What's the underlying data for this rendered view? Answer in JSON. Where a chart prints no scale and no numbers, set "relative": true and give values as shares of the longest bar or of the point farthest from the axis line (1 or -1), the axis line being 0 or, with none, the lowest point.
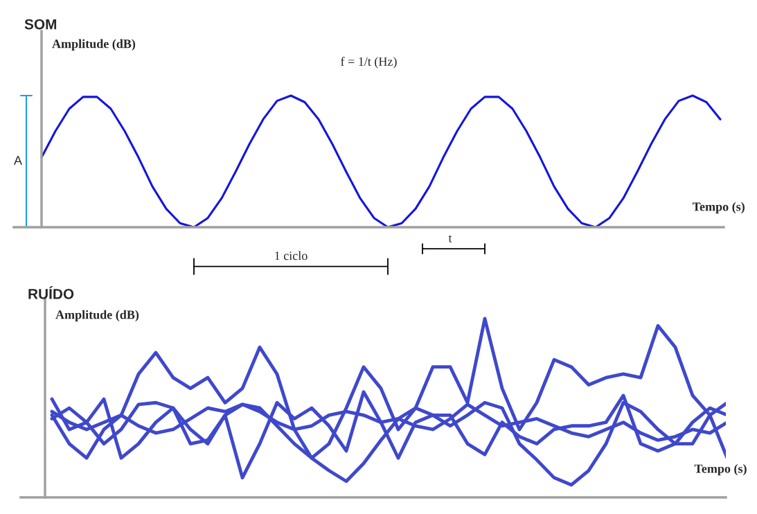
{
  "chart_data": [
    {
      "type": "line",
      "title": "SOM",
      "xlabel": "Tempo (s)",
      "ylabel": "Amplitude (dB)",
      "relative": true,
      "categories": [
        null,
        null,
        null,
        null,
        null,
        null,
        null,
        null,
        null,
        null,
        null,
        null,
        null,
        null,
        null,
        null,
        null,
        null,
        null,
        null,
        null,
        null,
        null,
        null,
        null,
        null,
        null,
        null,
        null,
        null,
        null,
        null,
        null,
        null,
        null,
        null,
        null,
        null,
        null,
        null,
        null,
        null,
        null,
        null,
        null,
        null,
        null,
        null,
        null,
        null
      ],
      "series": [
        {
          "color": "#1414e0",
          "values": [
            0.53,
            0.73,
            0.9,
            0.99,
            0.99,
            0.9,
            0.73,
            0.53,
            0.31,
            0.14,
            0.03,
            0.0,
            0.07,
            0.22,
            0.42,
            0.63,
            0.82,
            0.96,
            1.0,
            0.95,
            0.82,
            0.63,
            0.42,
            0.22,
            0.07,
            0.0,
            0.03,
            0.14,
            0.31,
            0.53,
            0.73,
            0.9,
            0.99,
            0.99,
            0.9,
            0.73,
            0.53,
            0.31,
            0.14,
            0.03,
            0.0,
            0.07,
            0.22,
            0.42,
            0.63,
            0.82,
            0.96,
            1.0,
            0.95,
            0.82
          ]
        }
      ],
      "annotations": [
        "f = 1/t (Hz)",
        "1 ciclo",
        "t",
        "A"
      ]
    },
    {
      "type": "line",
      "title": "RUÍDO",
      "xlabel": "Tempo (s)",
      "ylabel": "Amplitude (dB)",
      "relative": true,
      "categories": [
        null,
        null,
        null,
        null,
        null,
        null,
        null,
        null,
        null,
        null,
        null,
        null,
        null,
        null,
        null,
        null,
        null,
        null,
        null,
        null,
        null,
        null,
        null,
        null,
        null,
        null,
        null,
        null,
        null,
        null,
        null,
        null,
        null,
        null,
        null,
        null,
        null,
        null,
        null,
        null
      ],
      "series": [
        {
          "color": "#3f48cc",
          "values": [
            0.46,
            0.3,
            0.22,
            0.38,
            0.46,
            0.69,
            0.81,
            0.67,
            0.61,
            0.67,
            0.53,
            0.61,
            0.84,
            0.69,
            0.38,
            0.22,
            0.3,
            0.5,
            0.73,
            0.61,
            0.38,
            0.5,
            0.73,
            0.73,
            0.53,
            1.0,
            0.61,
            0.38,
            0.53,
            0.77,
            0.73,
            0.63,
            0.67,
            0.69,
            0.67,
            0.96,
            0.84,
            0.57,
            0.46,
            0.53
          ]
        },
        {
          "color": "#3f48cc",
          "values": [
            0.44,
            0.5,
            0.42,
            0.3,
            0.38,
            0.52,
            0.53,
            0.5,
            0.38,
            0.3,
            0.46,
            0.52,
            0.5,
            0.4,
            0.3,
            0.22,
            0.15,
            0.09,
            0.19,
            0.32,
            0.44,
            0.5,
            0.46,
            0.4,
            0.46,
            0.53,
            0.5,
            0.3,
            0.21,
            0.11,
            0.07,
            0.15,
            0.3,
            0.53,
            0.48,
            0.38,
            0.3,
            0.42,
            0.5,
            0.46
          ]
        },
        {
          "color": "#3f48cc",
          "values": [
            0.48,
            0.42,
            0.38,
            0.42,
            0.46,
            0.4,
            0.36,
            0.38,
            0.44,
            0.5,
            0.48,
            0.52,
            0.48,
            0.42,
            0.38,
            0.4,
            0.46,
            0.48,
            0.46,
            0.42,
            0.44,
            0.4,
            0.38,
            0.44,
            0.52,
            0.46,
            0.4,
            0.42,
            0.44,
            0.4,
            0.36,
            0.34,
            0.38,
            0.42,
            0.36,
            0.32,
            0.34,
            0.38,
            0.36,
            0.42
          ]
        },
        {
          "color": "#3f48cc",
          "values": [
            0.55,
            0.38,
            0.42,
            0.55,
            0.22,
            0.3,
            0.42,
            0.5,
            0.3,
            0.32,
            0.46,
            0.11,
            0.3,
            0.53,
            0.44,
            0.5,
            0.4,
            0.26,
            0.59,
            0.42,
            0.22,
            0.42,
            0.46,
            0.46,
            0.3,
            0.24,
            0.42,
            0.34,
            0.3,
            0.38,
            0.4,
            0.4,
            0.42,
            0.57,
            0.3,
            0.26,
            0.3,
            0.3,
            0.46,
            0.22
          ]
        }
      ]
    }
  ]
}
